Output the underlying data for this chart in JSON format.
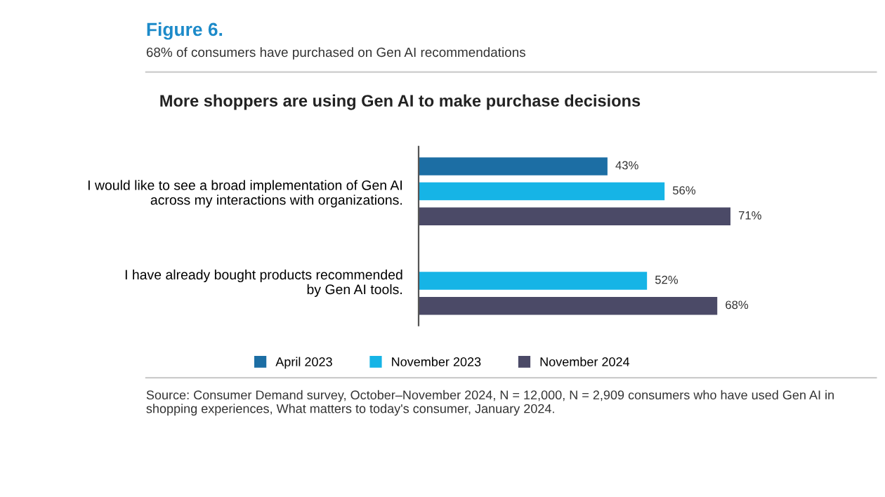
{
  "chart_data": {
    "type": "bar",
    "orientation": "horizontal",
    "title": "Figure 6.",
    "subtitle": "68% of consumers have purchased on Gen AI recommendations",
    "annotations": [
      "More shoppers are using Gen AI to make purchase decisions",
      "Source: Consumer Demand survey, October–November 2024, N = 12,000, N = 2,909 consumers who have used Gen AI in shopping experiences, What matters to today's consumer, January 2024."
    ],
    "categories": [
      "I would like to see a broad implementation of Gen AI\nacross my interactions with organizations.",
      "I have already bought products recommended\nby Gen AI tools."
    ],
    "series": [
      {
        "name": "April 2023",
        "color": "#1c6ea4",
        "values": [
          43,
          null
        ],
        "value_labels": [
          "43%",
          null
        ]
      },
      {
        "name": "November 2023",
        "color": "#16b4e6",
        "values": [
          56,
          52
        ],
        "value_labels": [
          "56%",
          "52%"
        ]
      },
      {
        "name": "November 2024",
        "color": "#4b4a67",
        "values": [
          71,
          68
        ],
        "value_labels": [
          "71%",
          "68%"
        ]
      }
    ],
    "tick_labels": false,
    "legend": "bottom"
  }
}
